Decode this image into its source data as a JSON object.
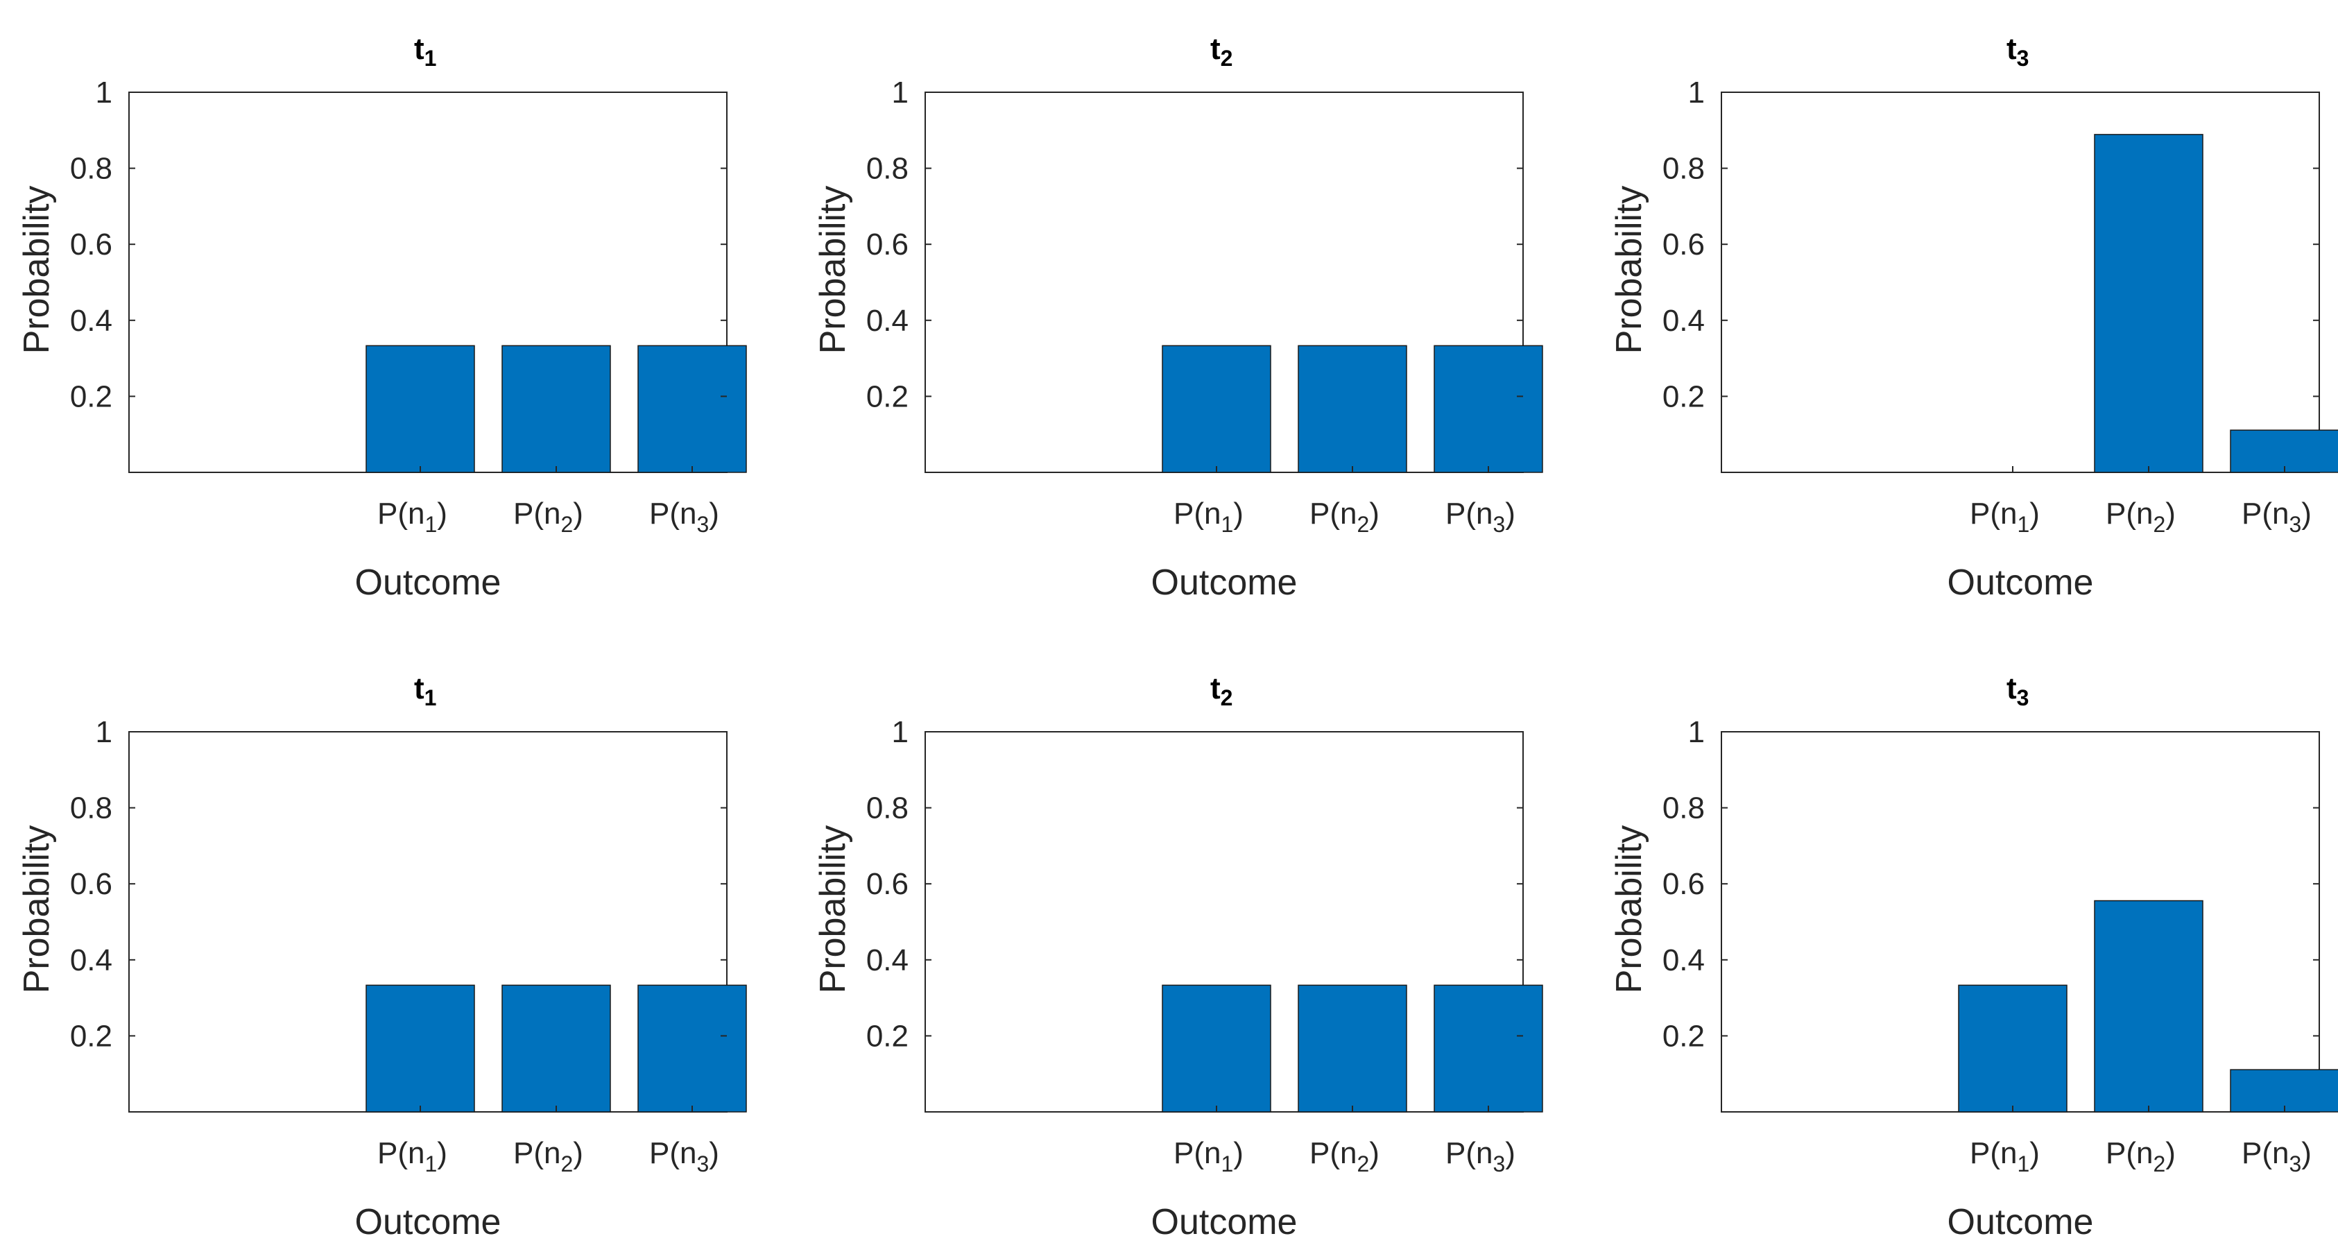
{
  "colors": {
    "bar": "#0072BD",
    "bar_edge": "#1a1a1a",
    "axes": "#262626",
    "background": "#ffffff"
  },
  "chart_data": [
    {
      "type": "bar",
      "title": "t",
      "title_sub": "1",
      "xlabel": "Outcome",
      "ylabel": "Probability",
      "categories": [
        {
          "main": "P(n",
          "sub": "1",
          "close": ")"
        },
        {
          "main": "P(n",
          "sub": "2",
          "close": ")"
        },
        {
          "main": "P(n",
          "sub": "3",
          "close": ")"
        }
      ],
      "values": [
        0.3333,
        0.3333,
        0.3333
      ],
      "ylim": [
        0,
        1
      ],
      "yticks": [
        "0.2",
        "0.4",
        "0.6",
        "0.8",
        "1"
      ],
      "grid": false
    },
    {
      "type": "bar",
      "title": "t",
      "title_sub": "2",
      "xlabel": "Outcome",
      "ylabel": "Probability",
      "categories": [
        {
          "main": "P(n",
          "sub": "1",
          "close": ")"
        },
        {
          "main": "P(n",
          "sub": "2",
          "close": ")"
        },
        {
          "main": "P(n",
          "sub": "3",
          "close": ")"
        }
      ],
      "values": [
        0.3333,
        0.3333,
        0.3333
      ],
      "ylim": [
        0,
        1
      ],
      "yticks": [
        "0.2",
        "0.4",
        "0.6",
        "0.8",
        "1"
      ],
      "grid": false
    },
    {
      "type": "bar",
      "title": "t",
      "title_sub": "3",
      "xlabel": "Outcome",
      "ylabel": "Probability",
      "categories": [
        {
          "main": "P(n",
          "sub": "1",
          "close": ")"
        },
        {
          "main": "P(n",
          "sub": "2",
          "close": ")"
        },
        {
          "main": "P(n",
          "sub": "3",
          "close": ")"
        }
      ],
      "values": [
        0.0,
        0.8889,
        0.1111
      ],
      "ylim": [
        0,
        1
      ],
      "yticks": [
        "0.2",
        "0.4",
        "0.6",
        "0.8",
        "1"
      ],
      "grid": false
    },
    {
      "type": "bar",
      "title": "t",
      "title_sub": "1",
      "xlabel": "Outcome",
      "ylabel": "Probability",
      "categories": [
        {
          "main": "P(n",
          "sub": "1",
          "close": ")"
        },
        {
          "main": "P(n",
          "sub": "2",
          "close": ")"
        },
        {
          "main": "P(n",
          "sub": "3",
          "close": ")"
        }
      ],
      "values": [
        0.3333,
        0.3333,
        0.3333
      ],
      "ylim": [
        0,
        1
      ],
      "yticks": [
        "0.2",
        "0.4",
        "0.6",
        "0.8",
        "1"
      ],
      "grid": false
    },
    {
      "type": "bar",
      "title": "t",
      "title_sub": "2",
      "xlabel": "Outcome",
      "ylabel": "Probability",
      "categories": [
        {
          "main": "P(n",
          "sub": "1",
          "close": ")"
        },
        {
          "main": "P(n",
          "sub": "2",
          "close": ")"
        },
        {
          "main": "P(n",
          "sub": "3",
          "close": ")"
        }
      ],
      "values": [
        0.3333,
        0.3333,
        0.3333
      ],
      "ylim": [
        0,
        1
      ],
      "yticks": [
        "0.2",
        "0.4",
        "0.6",
        "0.8",
        "1"
      ],
      "grid": false
    },
    {
      "type": "bar",
      "title": "t",
      "title_sub": "3",
      "xlabel": "Outcome",
      "ylabel": "Probability",
      "categories": [
        {
          "main": "P(n",
          "sub": "1",
          "close": ")"
        },
        {
          "main": "P(n",
          "sub": "2",
          "close": ")"
        },
        {
          "main": "P(n",
          "sub": "3",
          "close": ")"
        }
      ],
      "values": [
        0.3333,
        0.5556,
        0.1111
      ],
      "ylim": [
        0,
        1
      ],
      "yticks": [
        "0.2",
        "0.4",
        "0.6",
        "0.8",
        "1"
      ],
      "grid": false
    }
  ]
}
